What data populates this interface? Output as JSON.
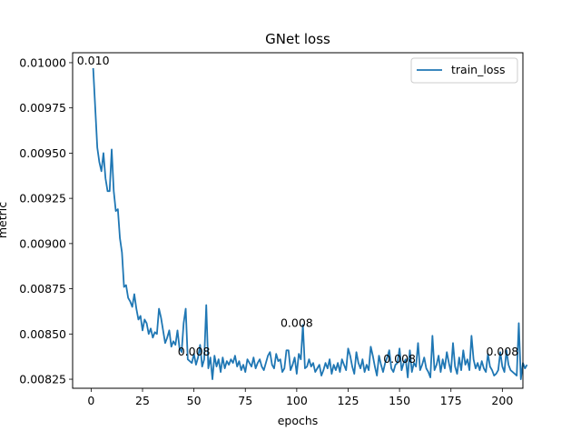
{
  "chart_data": {
    "type": "line",
    "title": "GNet loss",
    "xlabel": "epochs",
    "ylabel": "metric",
    "xlim": [
      -9,
      210
    ],
    "ylim": [
      0.0082,
      0.010055
    ],
    "x_ticks": [
      0,
      25,
      50,
      75,
      100,
      125,
      150,
      175,
      200
    ],
    "y_ticks": [
      0.00825,
      0.0085,
      0.00875,
      0.009,
      0.00925,
      0.0095,
      0.00975,
      0.01
    ],
    "y_tick_labels": [
      "0.00825",
      "0.00850",
      "0.00875",
      "0.00900",
      "0.00925",
      "0.00950",
      "0.00975",
      "0.01000"
    ],
    "legend": {
      "position": "top-right",
      "entries": [
        "train_loss"
      ]
    },
    "grid": false,
    "series": [
      {
        "name": "train_loss",
        "color": "#1f77b4",
        "x_start": 1,
        "x_step": 1,
        "values": [
          0.00997,
          0.00975,
          0.00953,
          0.00945,
          0.0094,
          0.0095,
          0.00936,
          0.00929,
          0.00929,
          0.00952,
          0.00929,
          0.00918,
          0.00919,
          0.00903,
          0.00895,
          0.00876,
          0.00877,
          0.0087,
          0.00868,
          0.00865,
          0.00872,
          0.00864,
          0.00858,
          0.0086,
          0.00852,
          0.00858,
          0.00856,
          0.0085,
          0.00853,
          0.00848,
          0.00851,
          0.0085,
          0.00864,
          0.00859,
          0.00852,
          0.00845,
          0.00848,
          0.00852,
          0.00843,
          0.00846,
          0.00844,
          0.00852,
          0.00842,
          0.0084,
          0.00856,
          0.00864,
          0.00836,
          0.00835,
          0.00834,
          0.00839,
          0.00833,
          0.00837,
          0.00844,
          0.00832,
          0.00836,
          0.00866,
          0.00831,
          0.00837,
          0.00825,
          0.00838,
          0.00832,
          0.00836,
          0.00829,
          0.00837,
          0.00831,
          0.00835,
          0.00833,
          0.00836,
          0.00834,
          0.00838,
          0.00832,
          0.00835,
          0.0083,
          0.00833,
          0.00829,
          0.00836,
          0.00834,
          0.00832,
          0.00837,
          0.00831,
          0.00834,
          0.00836,
          0.00832,
          0.0083,
          0.00834,
          0.00838,
          0.0084,
          0.00833,
          0.00831,
          0.00839,
          0.00835,
          0.00836,
          0.00829,
          0.00831,
          0.00841,
          0.00841,
          0.0083,
          0.00833,
          0.00837,
          0.00828,
          0.00839,
          0.00836,
          0.00855,
          0.00831,
          0.00832,
          0.00836,
          0.00832,
          0.00834,
          0.00829,
          0.00831,
          0.00833,
          0.00827,
          0.0083,
          0.00834,
          0.00831,
          0.00836,
          0.00828,
          0.00833,
          0.0083,
          0.00834,
          0.00829,
          0.00836,
          0.00833,
          0.0083,
          0.00842,
          0.00838,
          0.00832,
          0.00828,
          0.0084,
          0.00834,
          0.00831,
          0.00836,
          0.00829,
          0.00833,
          0.0083,
          0.00843,
          0.00838,
          0.00832,
          0.00827,
          0.00838,
          0.00833,
          0.00829,
          0.00834,
          0.00837,
          0.00841,
          0.00831,
          0.00829,
          0.00833,
          0.00834,
          0.00842,
          0.0083,
          0.00834,
          0.00836,
          0.00826,
          0.00841,
          0.00829,
          0.00834,
          0.00832,
          0.00845,
          0.0083,
          0.00833,
          0.00837,
          0.00831,
          0.00829,
          0.00826,
          0.00849,
          0.0083,
          0.00833,
          0.00838,
          0.00829,
          0.00836,
          0.00831,
          0.0084,
          0.00834,
          0.00829,
          0.00845,
          0.00832,
          0.00828,
          0.00837,
          0.0083,
          0.00841,
          0.00833,
          0.00836,
          0.0083,
          0.00849,
          0.00836,
          0.00831,
          0.00834,
          0.0083,
          0.00835,
          0.00831,
          0.00829,
          0.00839,
          0.00832,
          0.0083,
          0.00827,
          0.00828,
          0.0083,
          0.0084,
          0.00832,
          0.00829,
          0.00841,
          0.00833,
          0.0083,
          0.00829,
          0.00828,
          0.00827,
          0.00856,
          0.00825,
          0.00834,
          0.00831,
          0.00833
        ]
      }
    ],
    "annotations": [
      {
        "x": 1,
        "y": 0.00997,
        "text": "0.010"
      },
      {
        "x": 50,
        "y": 0.00836,
        "text": "0.008"
      },
      {
        "x": 100,
        "y": 0.00852,
        "text": "0.008"
      },
      {
        "x": 150,
        "y": 0.00832,
        "text": "0.008"
      },
      {
        "x": 200,
        "y": 0.00836,
        "text": "0.008"
      }
    ]
  }
}
